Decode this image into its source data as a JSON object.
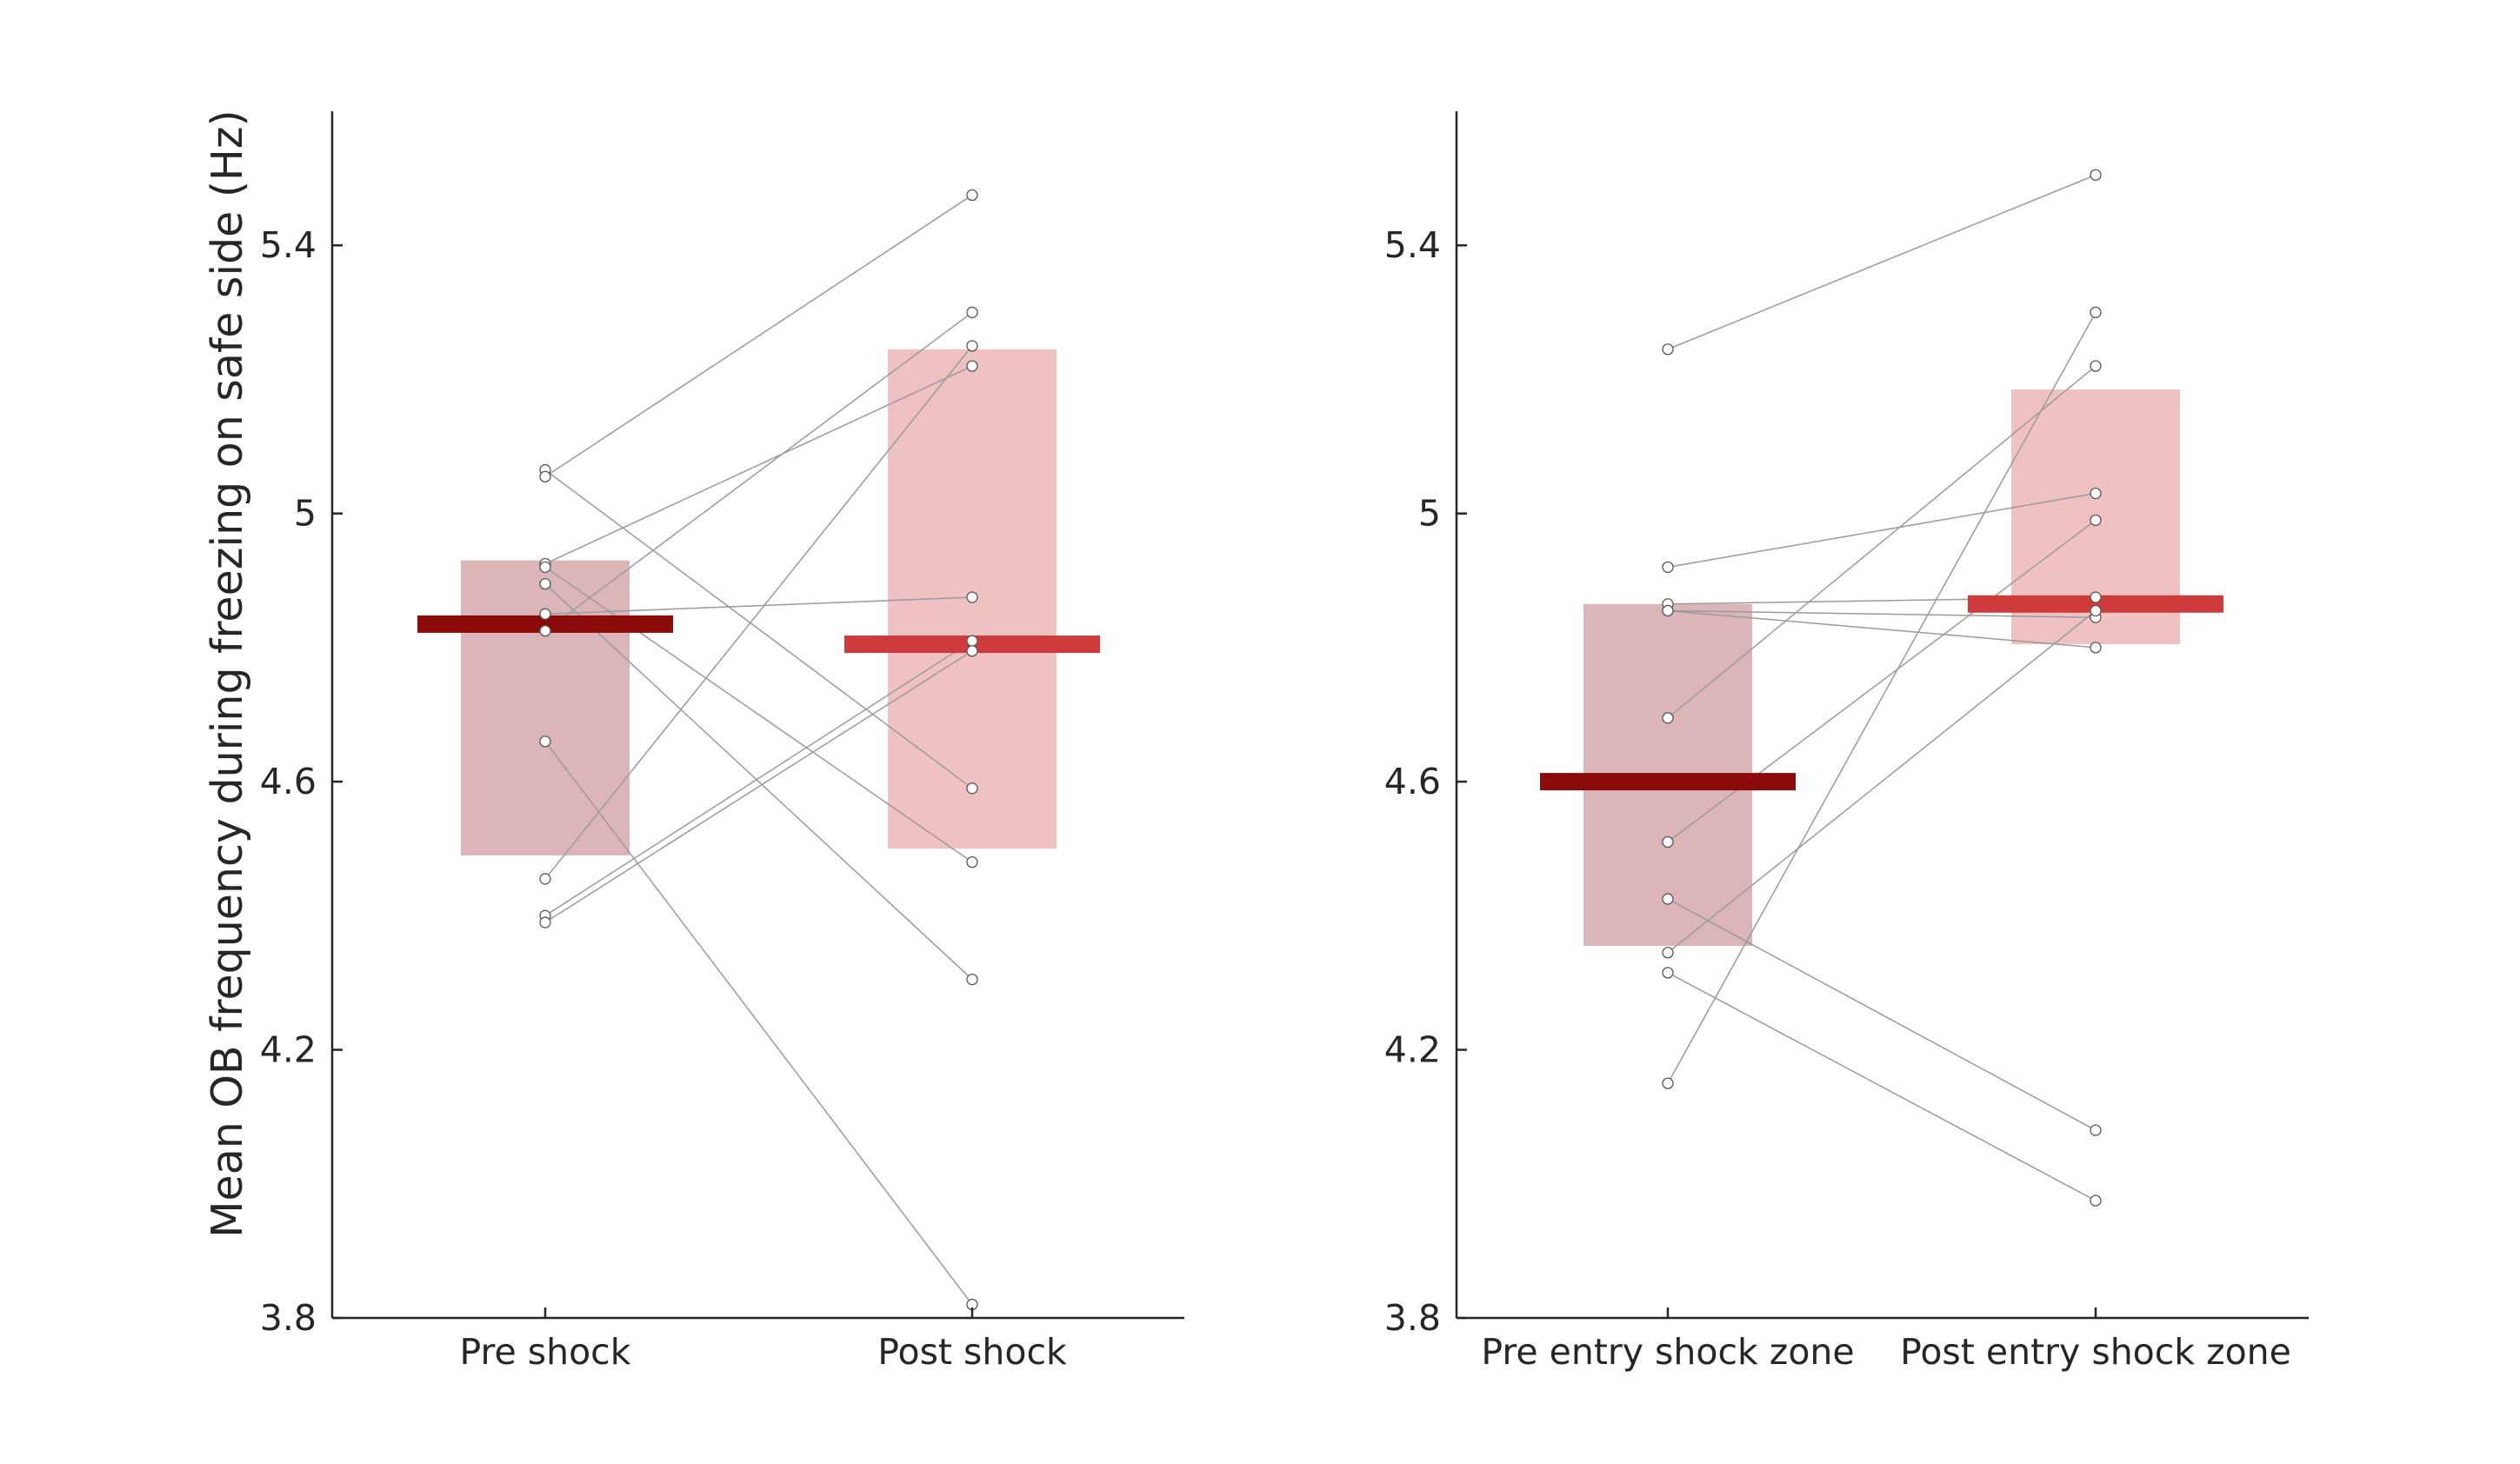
{
  "figure": {
    "ylabel": "Mean OB frequency during freezing on safe side (Hz)",
    "colors": {
      "pre_bar": "#dbb5b7",
      "post_bar": "#efc1c3",
      "pre_mean": "#8b0a0a",
      "post_mean": "#cf3a3c",
      "lines": "#9a9a9a",
      "points_fill": "#ffffff",
      "points_edge": "#555555"
    }
  },
  "chart_data": [
    {
      "type": "bar",
      "categories": [
        "Pre shock",
        "Post shock"
      ],
      "ylabel": "Mean OB frequency during freezing on safe side (Hz)",
      "ylim": [
        3.8,
        5.6
      ],
      "yticks": [
        3.8,
        4.2,
        4.6,
        5,
        5.4
      ],
      "ytick_labels": [
        "3.8",
        "4.2",
        "4.6",
        "5",
        "5.4"
      ],
      "grid": false,
      "bars": [
        {
          "category": "Pre shock",
          "low": 4.49,
          "high": 4.93,
          "mean": 4.835
        },
        {
          "category": "Post shock",
          "low": 4.5,
          "high": 5.245,
          "mean": 4.805
        }
      ],
      "paired": [
        [
          4.66,
          3.82
        ],
        [
          5.065,
          4.59
        ],
        [
          5.055,
          5.475
        ],
        [
          4.925,
          5.22
        ],
        [
          4.92,
          4.48
        ],
        [
          4.895,
          4.305
        ],
        [
          4.85,
          4.875
        ],
        [
          4.825,
          5.3
        ],
        [
          4.455,
          5.25
        ],
        [
          4.4,
          4.81
        ],
        [
          4.39,
          4.795
        ]
      ]
    },
    {
      "type": "bar",
      "categories": [
        "Pre entry shock zone",
        "Post entry shock zone"
      ],
      "ylim": [
        3.8,
        5.6
      ],
      "yticks": [
        3.8,
        4.2,
        4.6,
        5,
        5.4
      ],
      "ytick_labels": [
        "3.8",
        "4.2",
        "4.6",
        "5",
        "5.4"
      ],
      "grid": false,
      "bars": [
        {
          "category": "Pre entry shock zone",
          "low": 4.355,
          "high": 4.865,
          "mean": 4.6
        },
        {
          "category": "Post entry shock zone",
          "low": 4.805,
          "high": 5.185,
          "mean": 4.865
        }
      ],
      "paired": [
        [
          5.245,
          5.505
        ],
        [
          4.92,
          5.03
        ],
        [
          4.865,
          4.875
        ],
        [
          4.855,
          4.845
        ],
        [
          4.695,
          5.22
        ],
        [
          4.51,
          4.99
        ],
        [
          4.425,
          4.08
        ],
        [
          4.345,
          4.855
        ],
        [
          4.315,
          3.975
        ],
        [
          4.15,
          5.3
        ],
        [
          4.855,
          4.8
        ]
      ]
    }
  ]
}
